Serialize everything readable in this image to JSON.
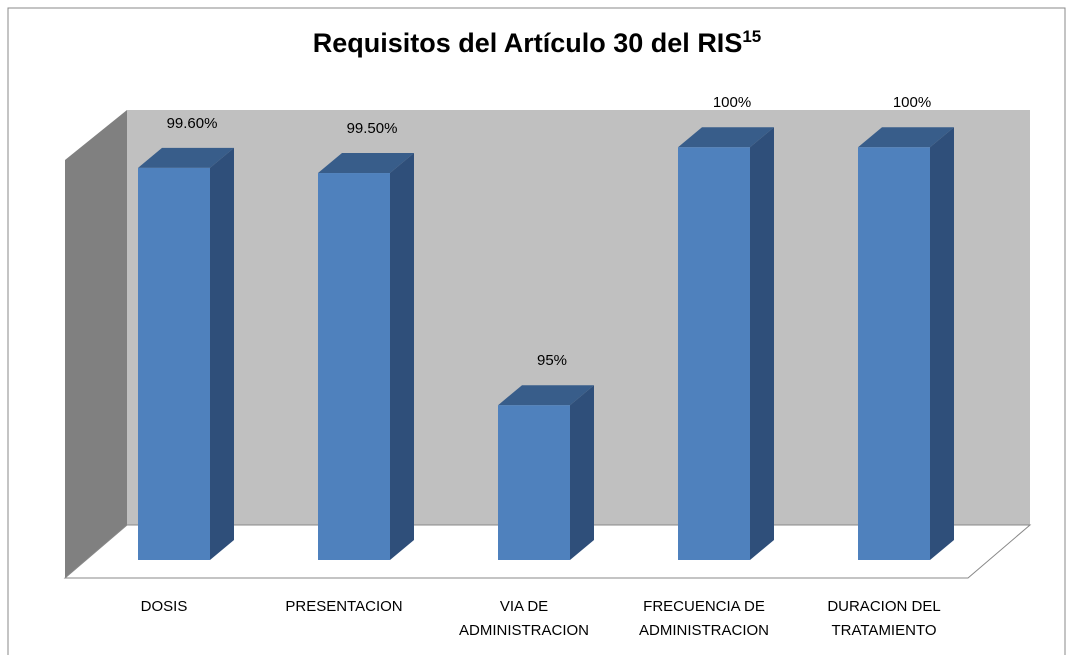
{
  "chart_data": {
    "type": "bar3d",
    "title": "Requisitos del Artículo 30 del RIS",
    "title_superscript": "15",
    "categories": [
      "DOSIS",
      "PRESENTACION",
      "VIA DE\nADMINISTRACION",
      "FRECUENCIA DE\nADMINISTRACION",
      "DURACION DEL\nTRATAMIENTO"
    ],
    "values": [
      99.6,
      99.5,
      95,
      100,
      100
    ],
    "value_labels": [
      "99.60%",
      "99.50%",
      "95%",
      "100%",
      "100%"
    ],
    "color": "#4f81bd",
    "ylim": [
      92,
      100.4
    ]
  }
}
